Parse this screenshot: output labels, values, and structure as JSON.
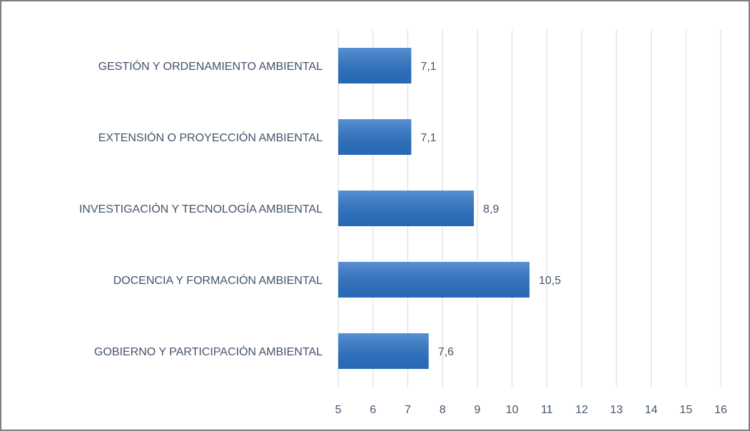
{
  "chart_data": {
    "type": "barh",
    "categories": [
      "GESTIÓN Y ORDENAMIENTO AMBIENTAL",
      "EXTENSIÓN O PROYECCIÓN AMBIENTAL",
      "INVESTIGACIÓN Y TECNOLOGÍA AMBIENTAL",
      "DOCENCIA Y FORMACIÓN AMBIENTAL",
      "GOBIERNO Y PARTICIPACIÓN AMBIENTAL"
    ],
    "values": [
      7.1,
      7.1,
      8.9,
      10.5,
      7.6
    ],
    "value_labels": [
      "7,1",
      "7,1",
      "8,9",
      "10,5",
      "7,6"
    ],
    "color": "#2a72c6",
    "xlim": [
      5,
      16
    ],
    "xticks": [
      5,
      6,
      7,
      8,
      9,
      10,
      11,
      12,
      13,
      14,
      15,
      16
    ],
    "grid": true
  }
}
